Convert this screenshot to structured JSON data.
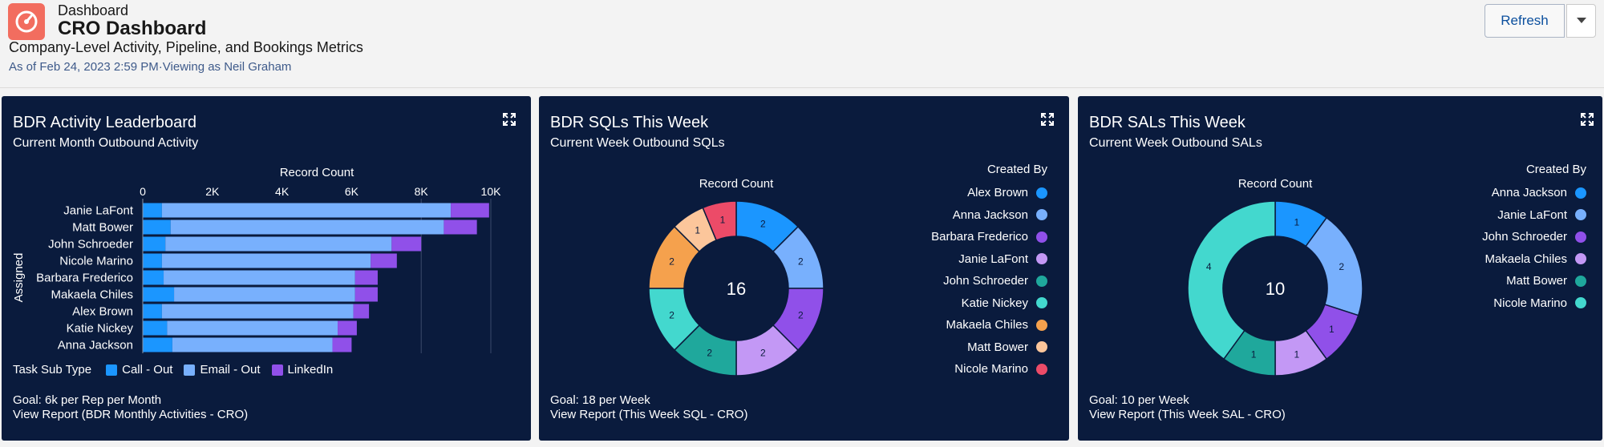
{
  "header": {
    "breadcrumb": "Dashboard",
    "title": "CRO Dashboard",
    "subtitle": "Company-Level Activity, Pipeline, and Bookings Metrics",
    "as_of": "As of Feb 24, 2023 2:59 PM",
    "viewing_as": "·Viewing as Neil Graham",
    "refresh_label": "Refresh",
    "icon": "gauge-icon",
    "accent": "#f26d5f"
  },
  "panels": [
    {
      "title": "BDR Activity Leaderboard",
      "subtitle": "Current Month Outbound Activity",
      "goal": "Goal: 6k per Rep per Month",
      "link": "View Report (BDR Monthly Activities - CRO)",
      "legend_label": "Task Sub Type"
    },
    {
      "title": "BDR SQLs This Week",
      "subtitle": "Current Week Outbound SQLs",
      "goal": "Goal: 18 per Week",
      "link": "View Report (This Week SQL - CRO)",
      "legend_title": "Created By"
    },
    {
      "title": "BDR SALs This Week",
      "subtitle": "Current Week Outbound SALs",
      "goal": "Goal: 10 per Week",
      "link": "View Report (This Week SAL - CRO)",
      "legend_title": "Created By"
    }
  ],
  "chart_data": [
    {
      "type": "bar",
      "orientation": "horizontal",
      "stacked": true,
      "title": "",
      "xlabel": "Record Count",
      "ylabel": "Assigned",
      "xlim": [
        0,
        10000
      ],
      "x_ticks": [
        "0",
        "2K",
        "4K",
        "6K",
        "8K",
        "10K"
      ],
      "categories": [
        "Janie LaFont",
        "Matt Bower",
        "John Schroeder",
        "Nicole Marino",
        "Barbara Frederico",
        "Makaela Chiles",
        "Alex Brown",
        "Katie Nickey",
        "Anna Jackson"
      ],
      "series": [
        {
          "name": "Call - Out",
          "color": "#1b96ff",
          "values": [
            550,
            800,
            650,
            550,
            600,
            900,
            550,
            700,
            850
          ]
        },
        {
          "name": "Email - Out",
          "color": "#78b0fd",
          "values": [
            8300,
            7850,
            6500,
            6000,
            5500,
            5200,
            5500,
            4900,
            4600
          ]
        },
        {
          "name": "LinkedIn",
          "color": "#9050e9",
          "values": [
            1100,
            950,
            850,
            750,
            650,
            650,
            450,
            550,
            550
          ]
        }
      ],
      "reference_line": 8000
    },
    {
      "type": "pie",
      "donut": true,
      "title": "Record Count",
      "center_total": "16",
      "slices": [
        {
          "label": "Alex Brown",
          "value": 2,
          "color": "#1b96ff"
        },
        {
          "label": "Anna Jackson",
          "value": 2,
          "color": "#78b0fd"
        },
        {
          "label": "Barbara Frederico",
          "value": 2,
          "color": "#9050e9"
        },
        {
          "label": "Janie LaFont",
          "value": 2,
          "color": "#c398f5"
        },
        {
          "label": "John Schroeder",
          "value": 2,
          "color": "#1fa89c"
        },
        {
          "label": "Katie Nickey",
          "value": 2,
          "color": "#43d8ce"
        },
        {
          "label": "Makaela Chiles",
          "value": 2,
          "color": "#f5a14d"
        },
        {
          "label": "Matt Bower",
          "value": 1,
          "color": "#fcc69b"
        },
        {
          "label": "Nicole Marino",
          "value": 1,
          "color": "#ec4b68"
        }
      ]
    },
    {
      "type": "pie",
      "donut": true,
      "title": "Record Count",
      "center_total": "10",
      "slices": [
        {
          "label": "Anna Jackson",
          "value": 1,
          "color": "#1b96ff"
        },
        {
          "label": "Janie LaFont",
          "value": 2,
          "color": "#78b0fd"
        },
        {
          "label": "John Schroeder",
          "value": 1,
          "color": "#9050e9"
        },
        {
          "label": "Makaela Chiles",
          "value": 1,
          "color": "#c398f5"
        },
        {
          "label": "Matt Bower",
          "value": 1,
          "color": "#1fa89c"
        },
        {
          "label": "Nicole Marino",
          "value": 4,
          "color": "#43d8ce"
        }
      ]
    }
  ]
}
